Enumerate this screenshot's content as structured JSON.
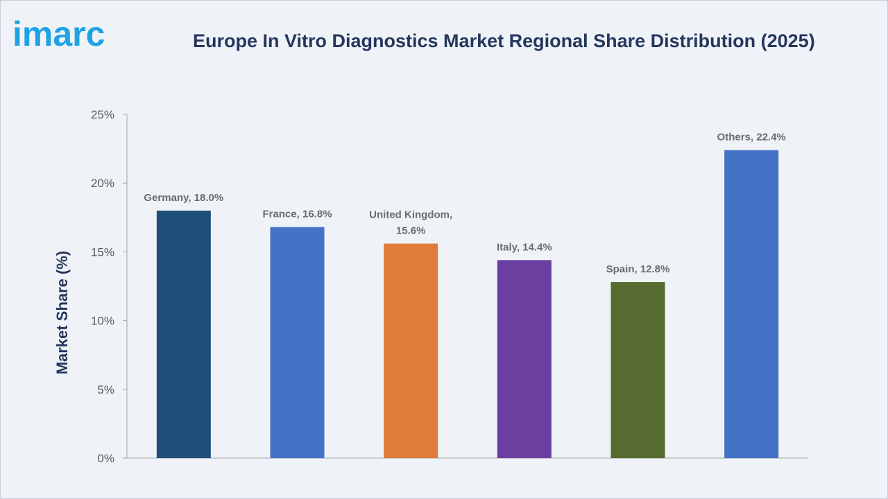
{
  "logo_text": "imarc",
  "title": "Europe In Vitro Diagnostics Market Regional Share Distribution (2025)",
  "chart_data": {
    "type": "bar",
    "title": "Europe In Vitro Diagnostics Market Regional Share Distribution (2025)",
    "ylabel": "Market Share (%)",
    "xlabel": "",
    "ylim": [
      0,
      25
    ],
    "yticks": [
      0,
      5,
      10,
      15,
      20,
      25
    ],
    "ytick_labels": [
      "0%",
      "5%",
      "10%",
      "15%",
      "20%",
      "25%"
    ],
    "grid": false,
    "categories": [
      "Germany",
      "France",
      "United Kingdom",
      "Italy",
      "Spain",
      "Others"
    ],
    "values": [
      18.0,
      16.8,
      15.6,
      14.4,
      12.8,
      22.4
    ],
    "data_labels": [
      [
        "Germany, 18.0%"
      ],
      [
        "France, 16.8%"
      ],
      [
        "United Kingdom,",
        "15.6%"
      ],
      [
        "Italy, 14.4%"
      ],
      [
        "Spain, 12.8%"
      ],
      [
        "Others, 22.4%"
      ]
    ],
    "colors": [
      "#1f4e79",
      "#4472c4",
      "#e07b39",
      "#6a3fa0",
      "#556b2f",
      "#4472c4"
    ]
  }
}
